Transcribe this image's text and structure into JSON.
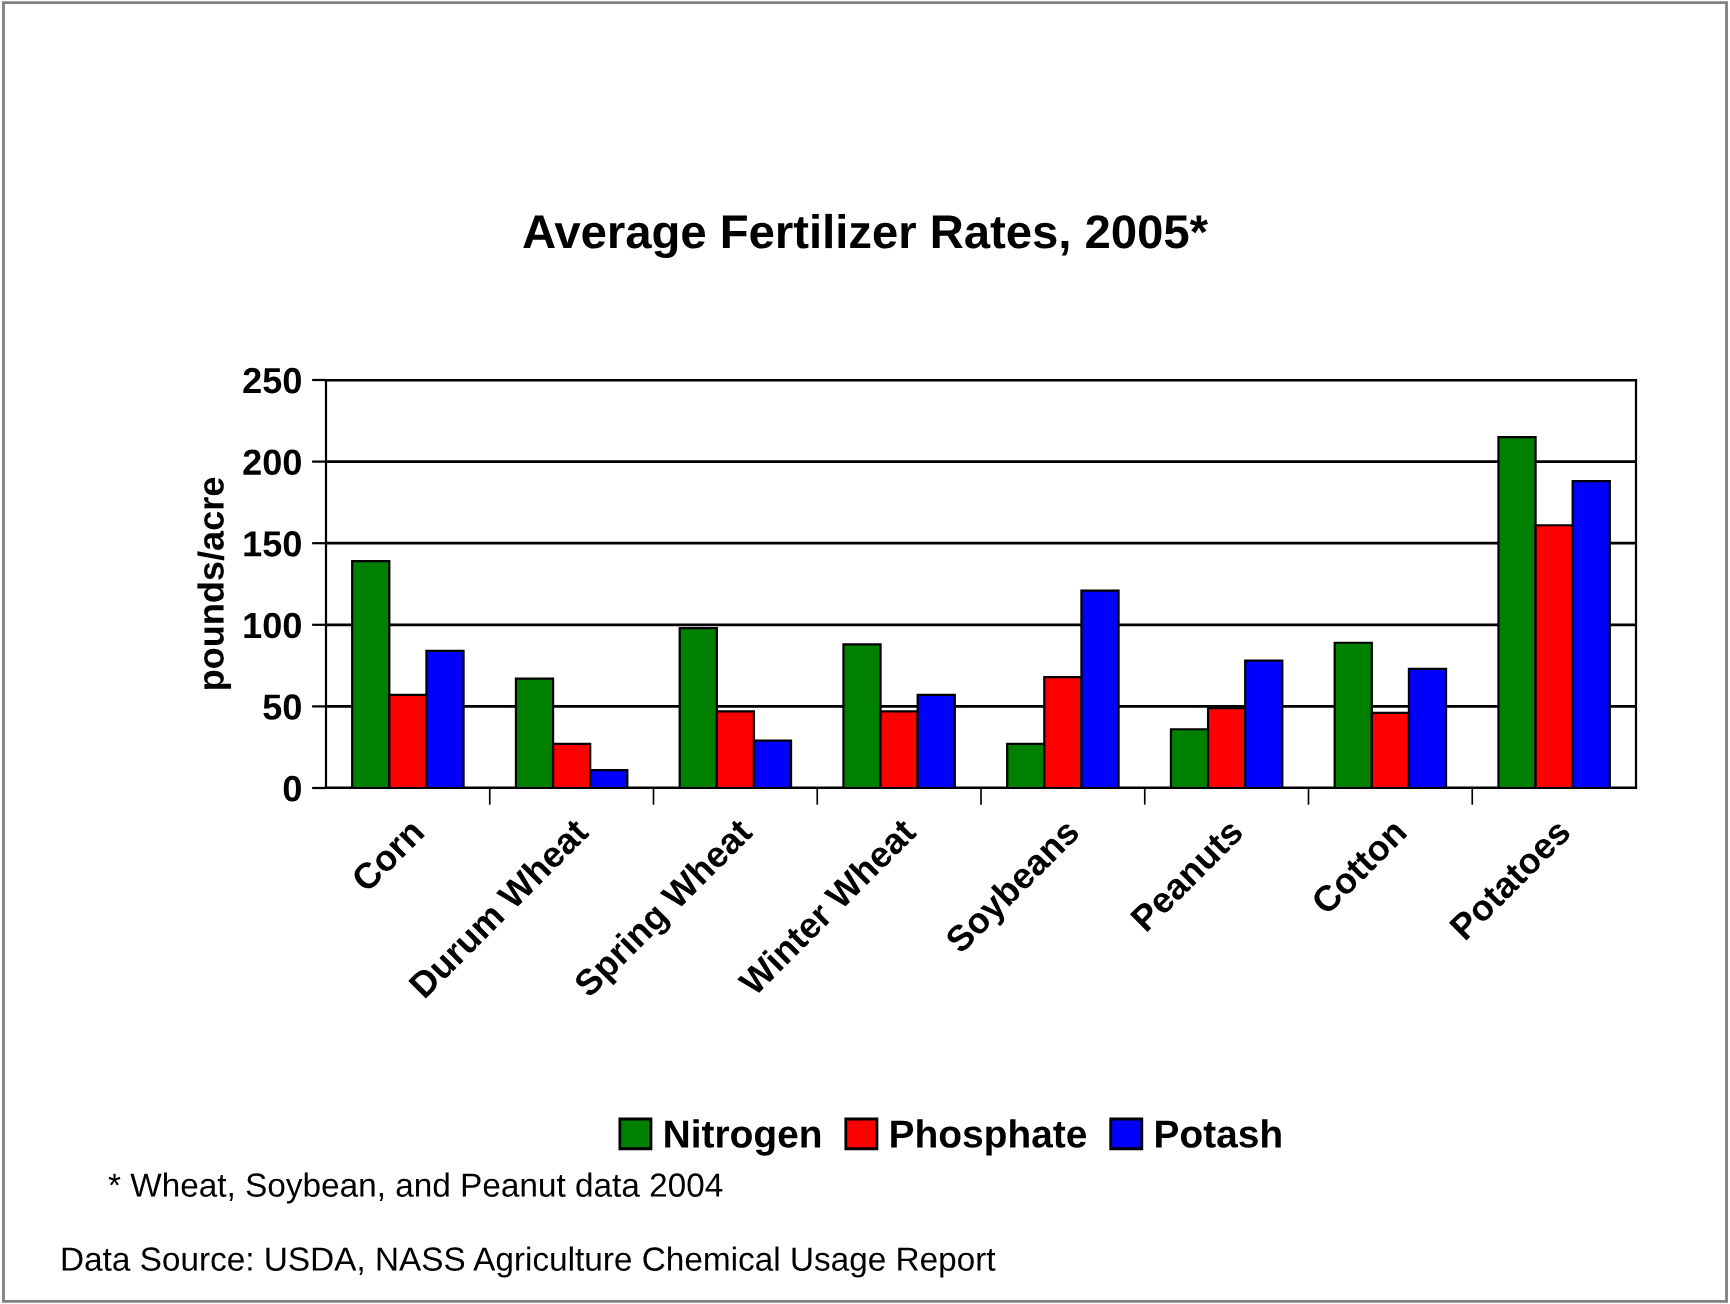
{
  "chart_data": {
    "type": "bar",
    "title": "Average Fertilizer Rates, 2005*",
    "ylabel": "pounds/acre",
    "categories": [
      "Corn",
      "Durum Wheat",
      "Spring Wheat",
      "Winter Wheat",
      "Soybeans",
      "Peanuts",
      "Cotton",
      "Potatoes"
    ],
    "series": [
      {
        "name": "Nitrogen",
        "color": "#008000",
        "values": [
          139,
          67,
          98,
          88,
          27,
          36,
          89,
          215
        ]
      },
      {
        "name": "Phosphate",
        "color": "#ff0000",
        "values": [
          57,
          27,
          47,
          47,
          68,
          49,
          46,
          161
        ]
      },
      {
        "name": "Potash",
        "color": "#0000ff",
        "values": [
          84,
          11,
          29,
          57,
          121,
          78,
          73,
          188
        ]
      }
    ],
    "ylim": [
      0,
      250
    ],
    "yticks": [
      0,
      50,
      100,
      150,
      200,
      250
    ],
    "grid": "y",
    "legend": "bottom",
    "annotations": [
      "* Wheat, Soybean, and Peanut data 2004",
      "Data Source: USDA, NASS Agriculture Chemical Usage Report"
    ]
  }
}
